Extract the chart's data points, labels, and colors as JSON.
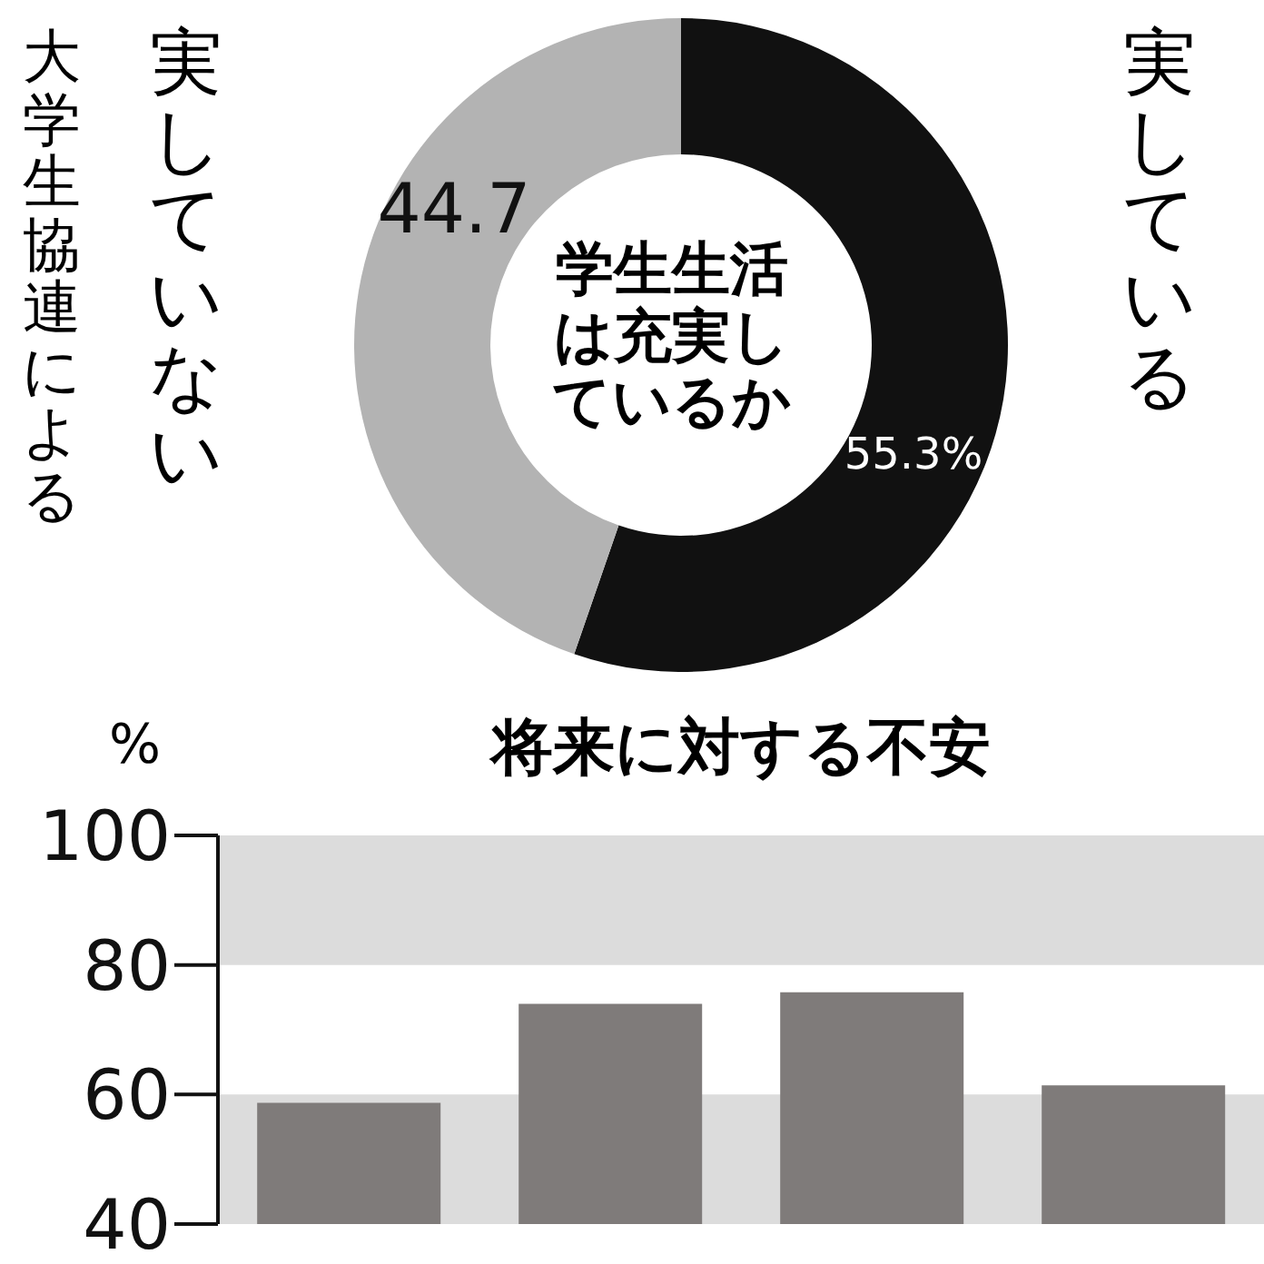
{
  "chart_data": [
    {
      "type": "donut",
      "title": "学生生活は充実しているか",
      "categories": [
        "実している",
        "実していない"
      ],
      "values": [
        55.3,
        44.7
      ],
      "colors": [
        "#111111",
        "#b3b3b3"
      ],
      "value_labels": [
        "55.3%",
        "44.7"
      ],
      "annotations": [
        "大学生協連による"
      ],
      "legend": false
    },
    {
      "type": "bar",
      "title": "将来に対する不安",
      "ylabel": "%",
      "categories": [
        null,
        null,
        null,
        null
      ],
      "values": [
        58.7,
        74.0,
        75.8,
        61.4
      ],
      "color": "#7f7b7a",
      "ylim": [
        40,
        100
      ],
      "yticks": [
        40,
        60,
        80,
        100
      ],
      "bands": [
        {
          "axis": "y",
          "from": 80,
          "to": 100,
          "color": "#dcdcdc"
        },
        {
          "axis": "y",
          "from": 40,
          "to": 60,
          "color": "#dcdcdc"
        }
      ],
      "grid": false,
      "legend": false,
      "tick_labels": "y"
    }
  ]
}
